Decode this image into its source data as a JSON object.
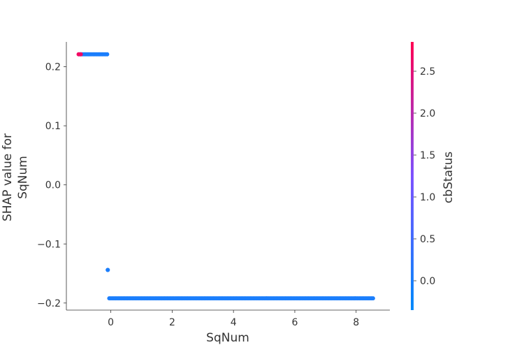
{
  "chart_data": {
    "type": "scatter",
    "title": "",
    "xlabel": "SqNum",
    "ylabel_lines": [
      "SHAP value for",
      "SqNum"
    ],
    "xlim": [
      -1.45,
      9.1
    ],
    "ylim": [
      -0.212,
      0.242
    ],
    "xticks": [
      0,
      2,
      4,
      6,
      8
    ],
    "yticks": [
      -0.2,
      -0.1,
      0.0,
      0.1,
      0.2
    ],
    "xtick_labels": [
      "0",
      "2",
      "4",
      "6",
      "8"
    ],
    "ytick_labels": [
      "−0.2",
      "−0.1",
      "0.0",
      "0.1",
      "0.2"
    ],
    "grid": false,
    "colorbar": {
      "label": "cbStatus",
      "range": [
        -0.35,
        2.85
      ],
      "ticks": [
        0.0,
        0.5,
        1.0,
        1.5,
        2.0,
        2.5
      ],
      "tick_labels": [
        "0.0",
        "0.5",
        "1.0",
        "1.5",
        "2.0",
        "2.5"
      ],
      "color_low": "#008afb",
      "color_mid": "#7c52ff",
      "color_high": "#ff0052"
    },
    "series": [
      {
        "x_start": -1.02,
        "x_end": -0.12,
        "y": 0.221,
        "color_value": 0.0
      },
      {
        "x_start": -1.05,
        "x_end": -0.98,
        "y": 0.221,
        "color_value": 2.7
      },
      {
        "x_start": -0.1,
        "x_end": -0.1,
        "y": -0.144,
        "color_value": 0.0
      },
      {
        "x_start": -0.05,
        "x_end": 8.55,
        "y": -0.192,
        "color_value": 0.0
      }
    ]
  }
}
